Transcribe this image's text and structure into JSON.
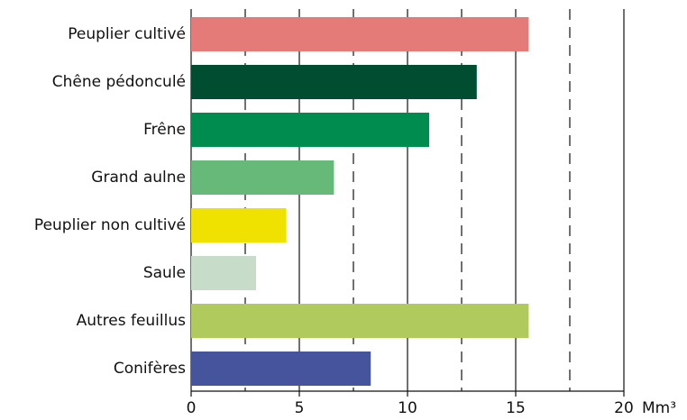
{
  "chart_data": {
    "type": "barh",
    "categories": [
      "Peuplier cultivé",
      "Chêne pédonculé",
      "Frêne",
      "Grand aulne",
      "Peuplier non cultivé",
      "Saule",
      "Autres feuillus",
      "Conifères"
    ],
    "values": [
      15.6,
      13.2,
      11.0,
      6.6,
      4.4,
      3.0,
      15.6,
      8.3
    ],
    "colors": [
      "#e57b78",
      "#004d31",
      "#008c4f",
      "#67b97a",
      "#f0e200",
      "#c7dcc9",
      "#b0ca5e",
      "#46549e"
    ],
    "xlabel": "Mm³",
    "xlim": [
      0,
      20
    ],
    "xticks": [
      0,
      5,
      10,
      15,
      20
    ],
    "xminorticks": [
      2.5,
      7.5,
      12.5,
      17.5
    ],
    "grid": true
  }
}
